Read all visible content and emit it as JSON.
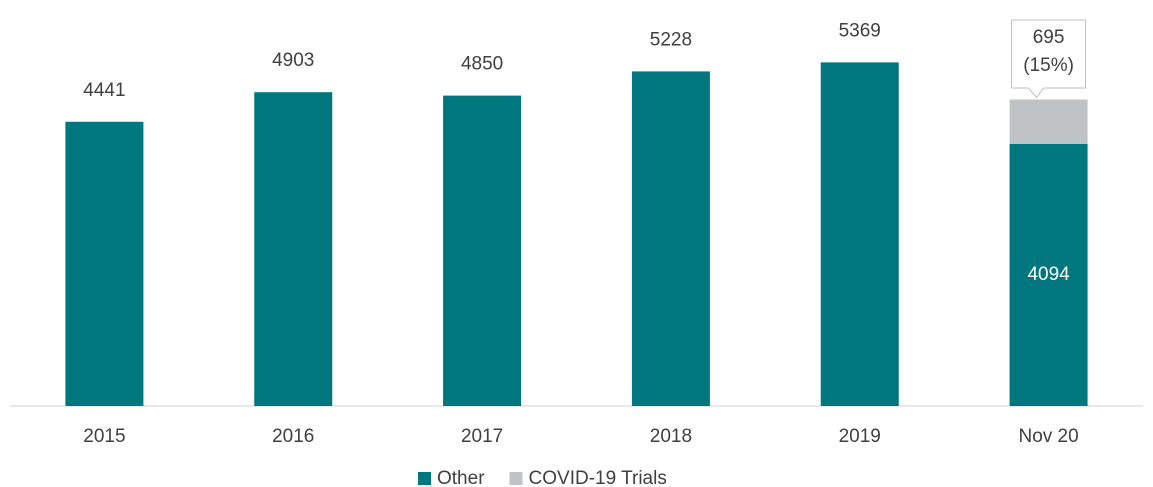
{
  "chart_data": {
    "type": "stacked_bar",
    "categories": [
      "2015",
      "2016",
      "2017",
      "2018",
      "2019",
      "Nov 20"
    ],
    "series": [
      {
        "name": "Other",
        "color": "#00777f",
        "values": [
          4441,
          4903,
          4850,
          5228,
          5369,
          4094
        ]
      },
      {
        "name": "COVID-19 Trials",
        "color": "#bfc3c6",
        "values": [
          null,
          null,
          null,
          null,
          null,
          695
        ],
        "value_labels": [
          null,
          null,
          null,
          null,
          null,
          "695 (15%)"
        ]
      }
    ],
    "ylim": [
      0,
      6000
    ],
    "legend": "bottom"
  }
}
